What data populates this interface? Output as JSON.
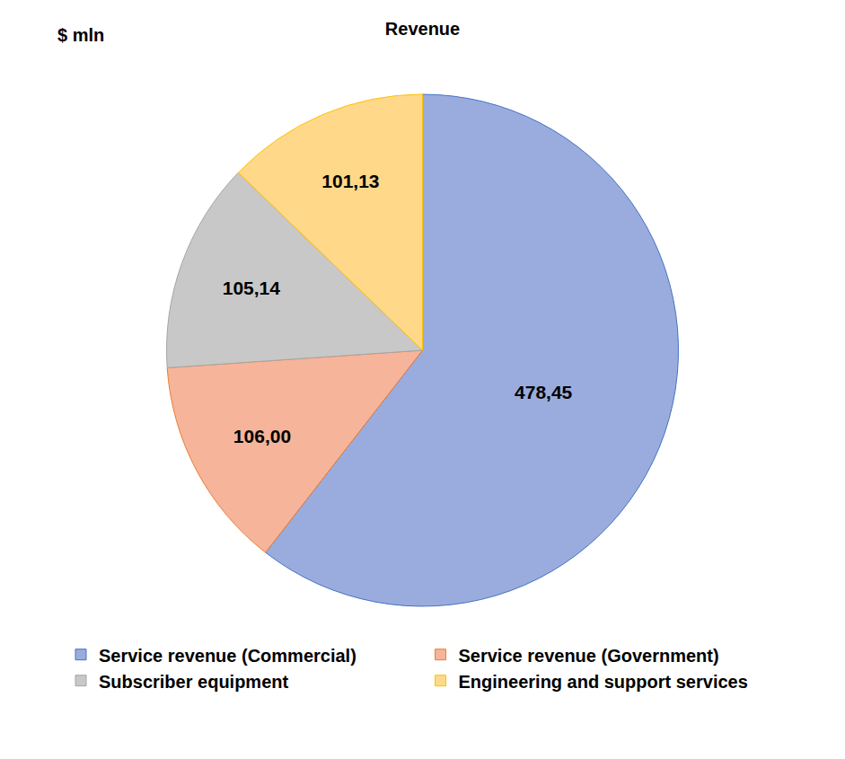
{
  "chart_data": {
    "type": "pie",
    "title": "Revenue",
    "annotations": [
      "$ mln"
    ],
    "categories": [
      "Service revenue (Commercial)",
      "Service revenue (Government)",
      "Subscriber equipment",
      "Engineering and support services"
    ],
    "values": [
      478.45,
      106.0,
      105.14,
      101.13
    ],
    "value_labels": [
      "478,45",
      "106,00",
      "105,14",
      "101,13"
    ],
    "colors": [
      "#9aacdd",
      "#f6b49a",
      "#c8c8c8",
      "#ffd88a"
    ],
    "data_labels": true,
    "legend": "bottom"
  }
}
